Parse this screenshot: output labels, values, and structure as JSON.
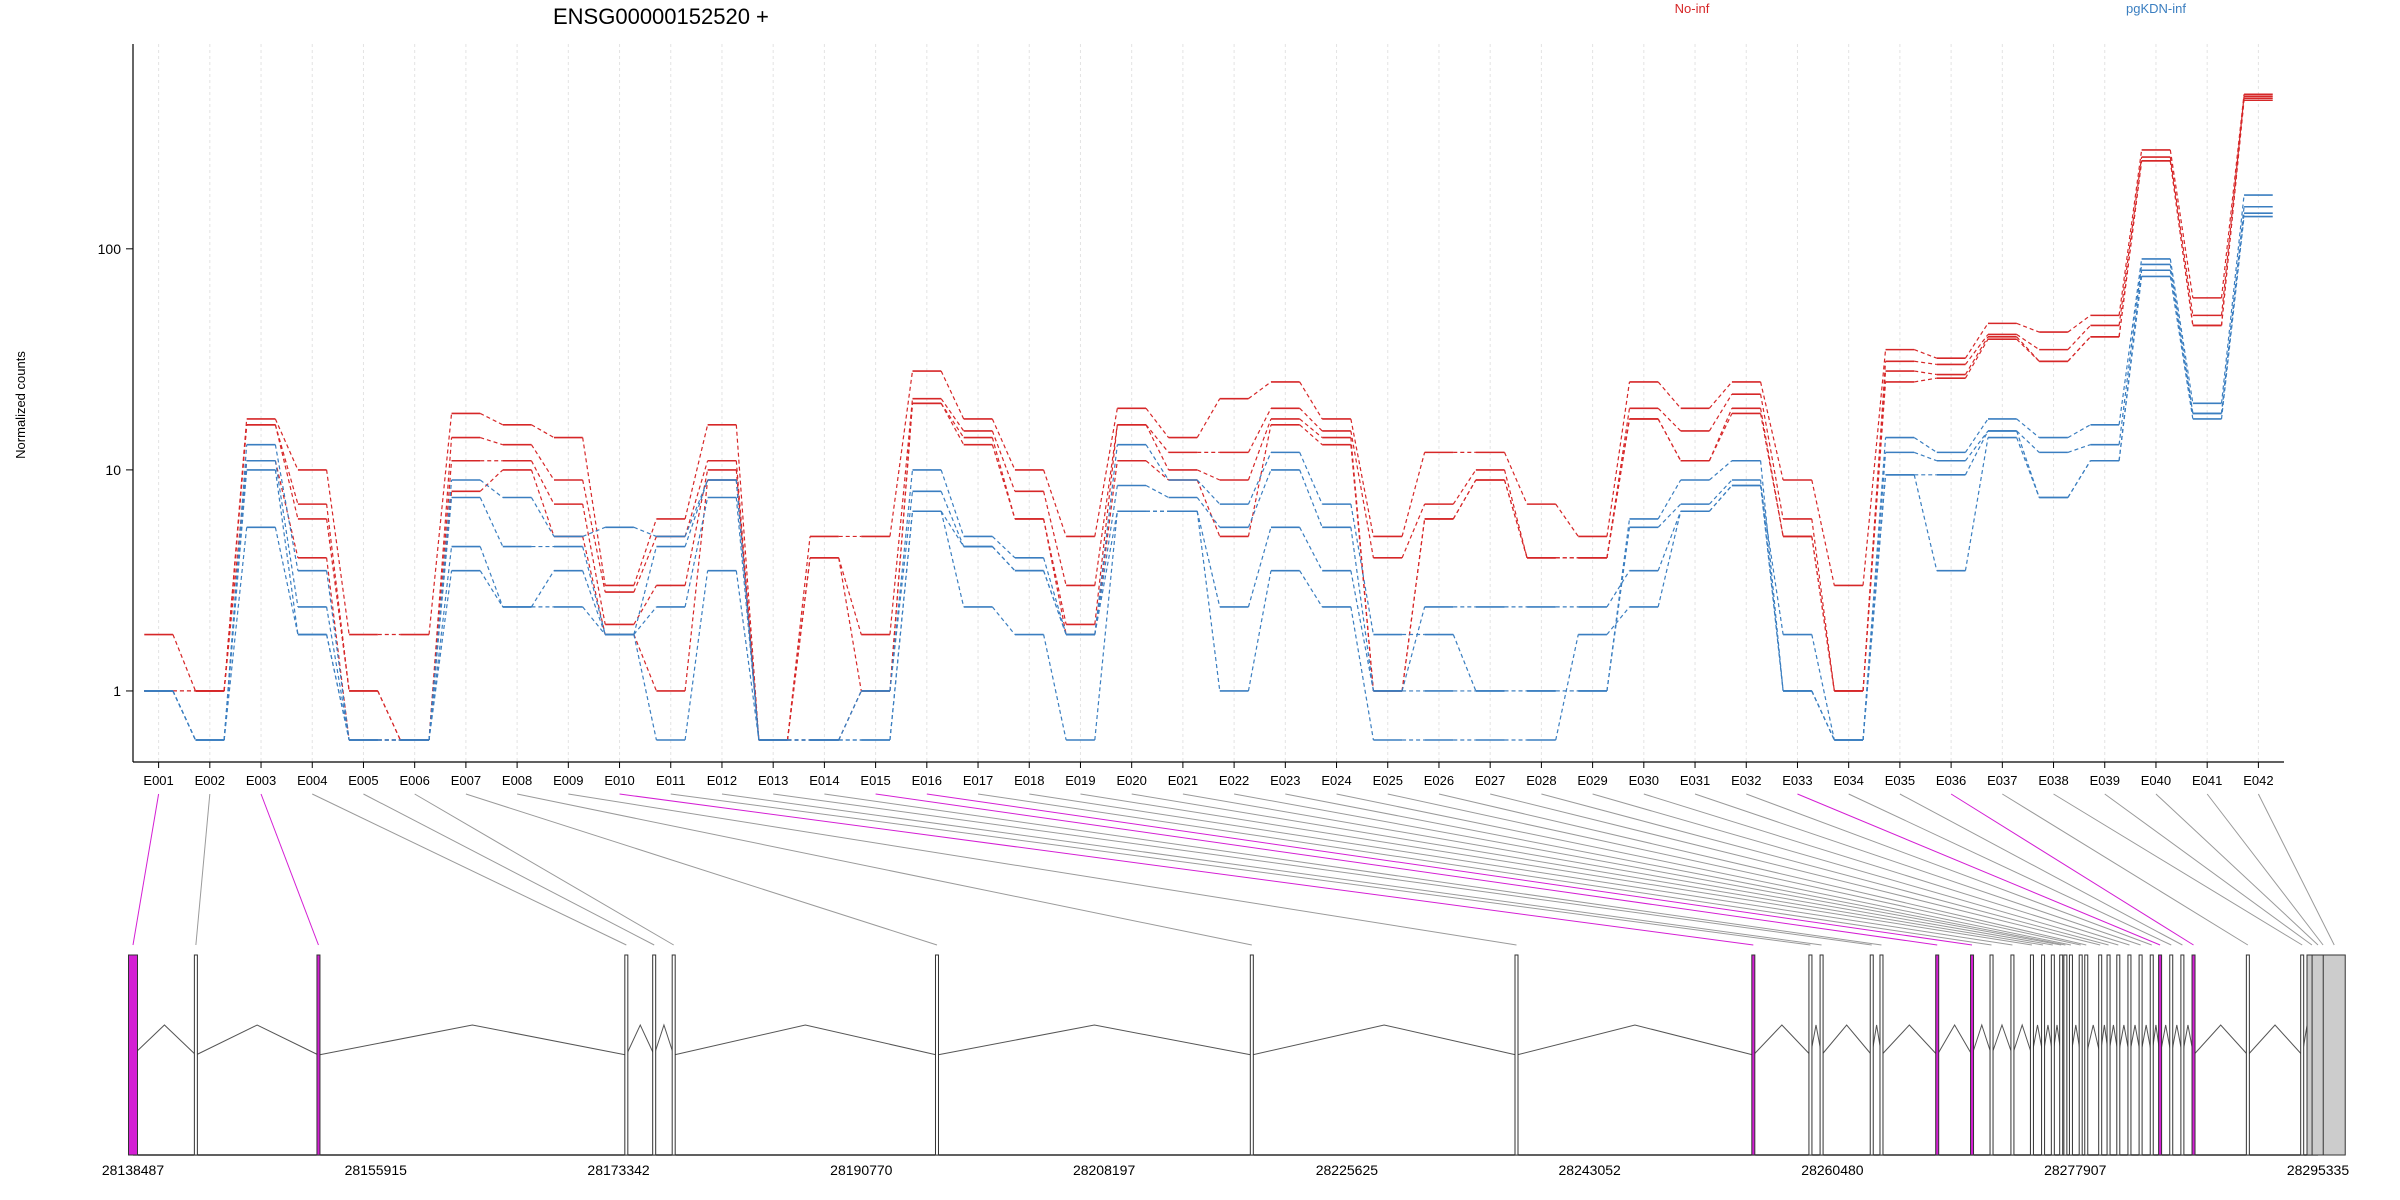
{
  "chart_data": {
    "type": "line",
    "title": "ENSG00000152520 +",
    "ylabel": "Normalized counts",
    "yscale": "log",
    "ylim": [
      0.6,
      700
    ],
    "yticks": [
      "1",
      "10",
      "100"
    ],
    "ytick_values": [
      1,
      10,
      100
    ],
    "legend": [
      {
        "name": "No-inf",
        "color": "#d62728"
      },
      {
        "name": "pgKDN-inf",
        "color": "#3a7ec0"
      }
    ],
    "categories": [
      "E001",
      "E002",
      "E003",
      "E004",
      "E005",
      "E006",
      "E007",
      "E008",
      "E009",
      "E010",
      "E011",
      "E012",
      "E013",
      "E014",
      "E015",
      "E016",
      "E017",
      "E018",
      "E019",
      "E020",
      "E021",
      "E022",
      "E023",
      "E024",
      "E025",
      "E026",
      "E027",
      "E028",
      "E029",
      "E030",
      "E031",
      "E032",
      "E033",
      "E034",
      "E035",
      "E036",
      "E037",
      "E038",
      "E039",
      "E040",
      "E041",
      "E042"
    ],
    "series": [
      {
        "group": "No-inf",
        "color": "#d62728",
        "values": [
          1.8,
          1,
          17,
          10,
          1.8,
          1.8,
          18,
          16,
          14,
          3,
          6,
          16,
          0.6,
          5,
          5,
          28,
          17,
          10,
          5,
          19,
          14,
          21,
          25,
          17,
          5,
          12,
          12,
          7,
          5,
          25,
          19,
          25,
          9,
          3,
          35,
          32,
          46,
          42,
          50,
          280,
          60,
          500
        ]
      },
      {
        "group": "No-inf",
        "color": "#d62728",
        "values": [
          1,
          1,
          16,
          7,
          1,
          0.6,
          14,
          13,
          9,
          2.8,
          5,
          11,
          0.6,
          4,
          1.8,
          21,
          15,
          8,
          3,
          16,
          12,
          12,
          19,
          15,
          4,
          7,
          10,
          4,
          4,
          19,
          15,
          22,
          6,
          1,
          31,
          30,
          41,
          35,
          45,
          260,
          50,
          490
        ]
      },
      {
        "group": "No-inf",
        "color": "#d62728",
        "values": [
          1,
          1,
          16,
          6,
          1,
          0.6,
          11,
          11,
          7,
          2,
          3,
          10,
          0.6,
          4,
          1,
          20,
          14,
          6,
          2,
          16,
          10,
          9,
          17,
          14,
          1,
          6,
          9,
          4,
          4,
          17,
          11,
          19,
          5,
          1,
          28,
          27,
          40,
          31,
          40,
          250,
          45,
          480
        ]
      },
      {
        "group": "No-inf",
        "color": "#d62728",
        "values": [
          1,
          1,
          11,
          4,
          0.6,
          0.6,
          8,
          10,
          5,
          1.8,
          1,
          9,
          0.6,
          0.6,
          1,
          20,
          13,
          6,
          1.8,
          11,
          9,
          5,
          16,
          13,
          1,
          6,
          9,
          4,
          4,
          17,
          11,
          18,
          5,
          1,
          25,
          26,
          39,
          31,
          40,
          250,
          45,
          470
        ]
      },
      {
        "group": "pgKDN-inf",
        "color": "#3a7ec0",
        "values": [
          1,
          0.6,
          13,
          3.5,
          0.6,
          0.6,
          9,
          7.5,
          5,
          5.5,
          5,
          9,
          0.6,
          0.6,
          1,
          10,
          5,
          4,
          1.8,
          13,
          9,
          7,
          12,
          7,
          1.8,
          1.8,
          1,
          1,
          1,
          6,
          9,
          11,
          1,
          0.6,
          14,
          12,
          17,
          14,
          16,
          90,
          20,
          175
        ]
      },
      {
        "group": "pgKDN-inf",
        "color": "#3a7ec0",
        "values": [
          1,
          0.6,
          11,
          2.4,
          0.6,
          0.6,
          7.5,
          4.5,
          4.5,
          1.8,
          4.5,
          9,
          0.6,
          0.6,
          1,
          8,
          4.5,
          3.5,
          1.8,
          8.5,
          7.5,
          5.5,
          10,
          5.5,
          1,
          1,
          1,
          1,
          1,
          5.5,
          7,
          9,
          1,
          0.6,
          12,
          11,
          15,
          12,
          13,
          85,
          18,
          155
        ]
      },
      {
        "group": "pgKDN-inf",
        "color": "#3a7ec0",
        "values": [
          1,
          0.6,
          10,
          1.8,
          0.6,
          0.6,
          4.5,
          2.4,
          3.5,
          1.8,
          2.4,
          7.5,
          0.6,
          0.6,
          0.6,
          6.5,
          4.5,
          3.5,
          1.8,
          6.5,
          6.5,
          2.4,
          5.5,
          3.5,
          1,
          2.4,
          2.4,
          2.4,
          2.4,
          3.5,
          6.5,
          8.5,
          1,
          0.6,
          9.5,
          9.5,
          15,
          7.5,
          11,
          80,
          18,
          145
        ]
      },
      {
        "group": "pgKDN-inf",
        "color": "#3a7ec0",
        "values": [
          1,
          0.6,
          5.5,
          1.8,
          0.6,
          0.6,
          3.5,
          2.4,
          2.4,
          1.8,
          0.6,
          3.5,
          0.6,
          0.6,
          0.6,
          6.5,
          2.4,
          1.8,
          0.6,
          6.5,
          6.5,
          1,
          3.5,
          2.4,
          0.6,
          0.6,
          0.6,
          0.6,
          1.8,
          2.4,
          6.5,
          8.5,
          1.8,
          0.6,
          9.5,
          3.5,
          14,
          7.5,
          11,
          75,
          17,
          140
        ]
      }
    ],
    "genomic_labels": [
      "28138487",
      "28155915",
      "28173342",
      "28190770",
      "28208197",
      "28225625",
      "28243052",
      "28260480",
      "28277907",
      "28295335"
    ],
    "genomic_range": [
      28138487,
      28295335
    ],
    "exon_positions": [
      28138487,
      28143000,
      28151800,
      28173900,
      28175900,
      28177300,
      28196200,
      28218800,
      28237800,
      28254800,
      28258900,
      28259700,
      28263300,
      28264000,
      28268000,
      28270500,
      28271900,
      28273400,
      28274800,
      28275600,
      28276300,
      28276900,
      28277200,
      28277600,
      28278300,
      28278700,
      28279700,
      28280300,
      28281000,
      28281800,
      28282600,
      28283400,
      28284000,
      28284800,
      28285600,
      28286400,
      28290300,
      28294200,
      28294900,
      28295335,
      28295700,
      28296500
    ],
    "highlighted_exons": [
      "E001",
      "E003",
      "E010",
      "E015",
      "E016",
      "E033",
      "E036"
    ],
    "highlight_color": "#d41fd4"
  }
}
